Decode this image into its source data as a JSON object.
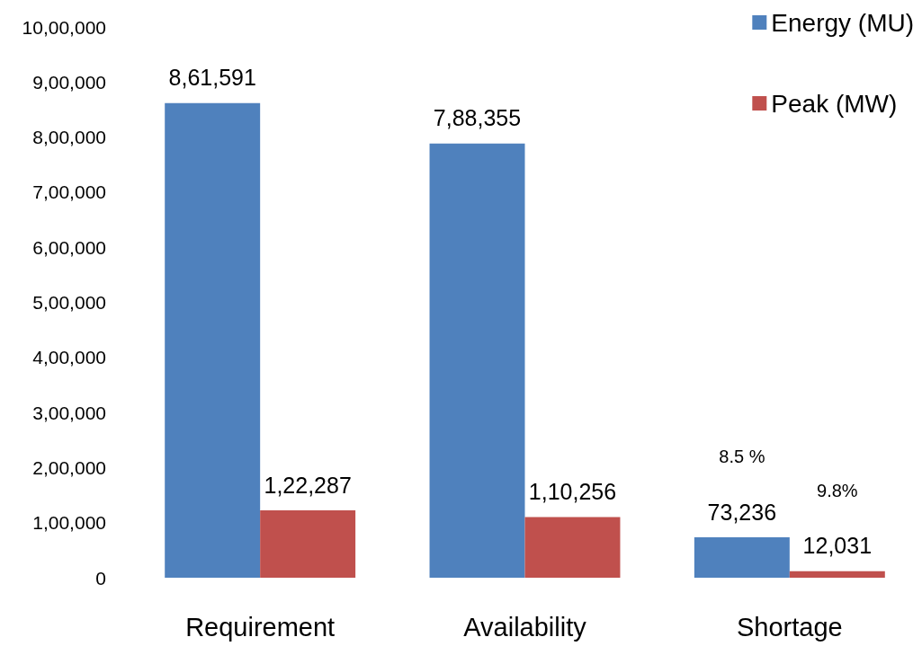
{
  "chart_data": {
    "type": "bar",
    "categories": [
      "Requirement",
      "Availability",
      "Shortage"
    ],
    "series": [
      {
        "name": "Energy (MU)",
        "color": "#4f81bd",
        "values": [
          861591,
          788355,
          73236
        ],
        "value_labels": [
          "8,61,591",
          "7,88,355",
          "73,236"
        ]
      },
      {
        "name": "Peak (MW)",
        "color": "#c0504d",
        "values": [
          122287,
          110256,
          12031
        ],
        "value_labels": [
          "1,22,287",
          "1,10,256",
          "12,031"
        ]
      }
    ],
    "ylim": [
      0,
      1000000
    ],
    "yticks": [
      0,
      {
        "value": 100000,
        "label": "1,00,000"
      },
      {
        "value": 200000,
        "label": "2,00,000"
      },
      {
        "value": 300000,
        "label": "3,00,000"
      },
      {
        "value": 400000,
        "label": "4,00,000"
      },
      {
        "value": 500000,
        "label": "5,00,000"
      },
      {
        "value": 600000,
        "label": "6,00,000"
      },
      {
        "value": 700000,
        "label": "7,00,000"
      },
      {
        "value": 800000,
        "label": "8,00,000"
      },
      {
        "value": 900000,
        "label": "9,00,000"
      },
      {
        "value": 1000000,
        "label": "10,00,000"
      }
    ],
    "annotations": [
      "8.5 %",
      "9.8%"
    ],
    "grid": false,
    "legend": "top right"
  }
}
